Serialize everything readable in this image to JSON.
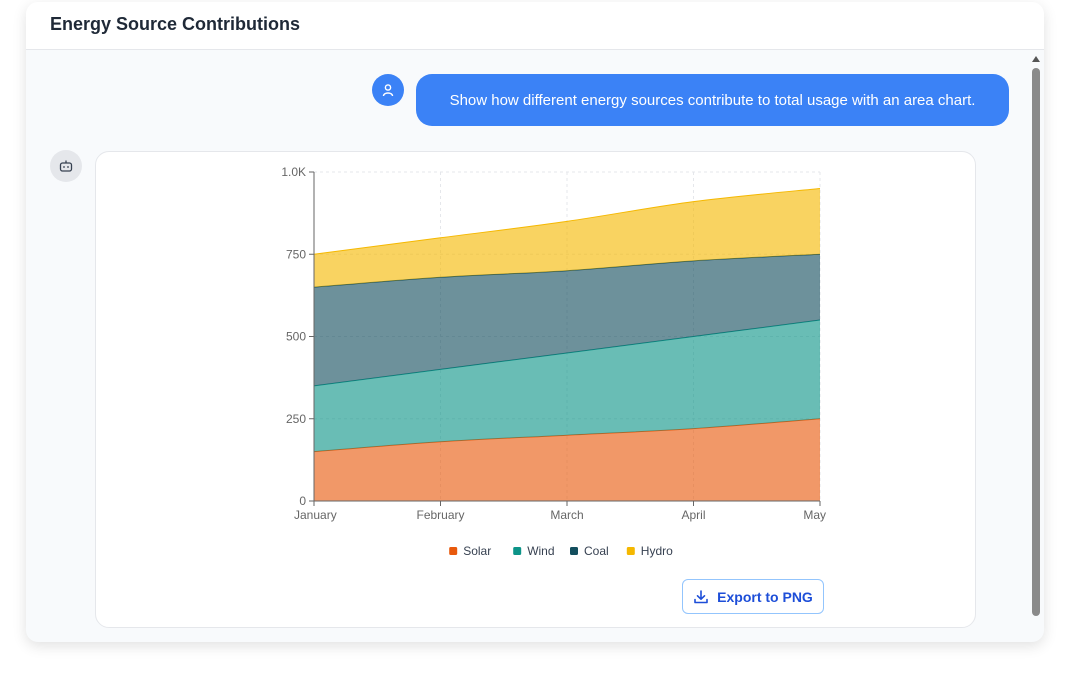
{
  "header": {
    "title": "Energy Source Contributions"
  },
  "user_message": "Show how different energy sources contribute to total usage with an area chart.",
  "chart_data": {
    "type": "area",
    "stacked": true,
    "categories": [
      "January",
      "February",
      "March",
      "April",
      "May"
    ],
    "series": [
      {
        "name": "Solar",
        "color": "#e8590c",
        "values": [
          150,
          180,
          200,
          220,
          250
        ]
      },
      {
        "name": "Wind",
        "color": "#0d9488",
        "values": [
          200,
          220,
          250,
          280,
          300
        ]
      },
      {
        "name": "Coal",
        "color": "#134e5e",
        "values": [
          300,
          280,
          250,
          230,
          200
        ]
      },
      {
        "name": "Hydro",
        "color": "#f5b800",
        "values": [
          100,
          120,
          150,
          180,
          200
        ]
      }
    ],
    "ylim": [
      0,
      1000
    ],
    "yticks": [
      0,
      250,
      500,
      750,
      {
        "value": 1000,
        "label": "1.0K"
      }
    ],
    "grid": true,
    "legend": "bottom"
  },
  "export_button": "Export to PNG"
}
